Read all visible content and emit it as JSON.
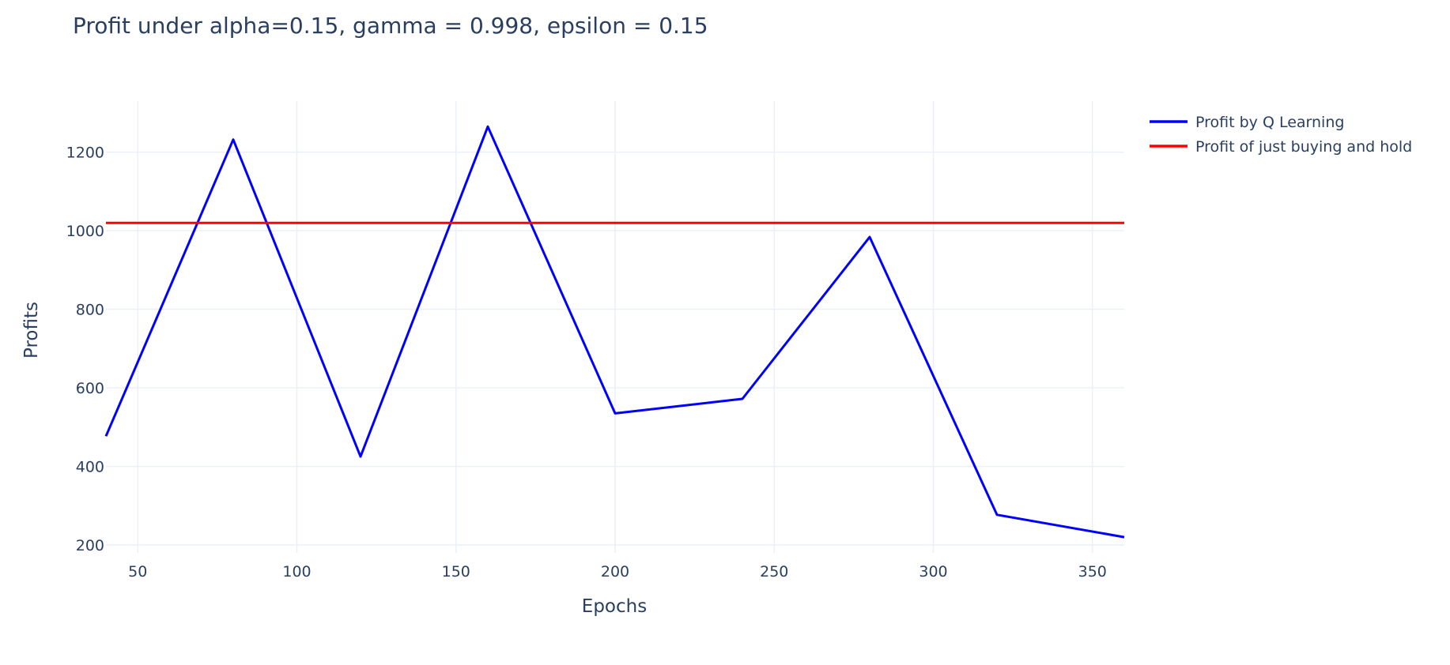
{
  "chart_data": {
    "type": "line",
    "title": "Profit under alpha=0.15, gamma = 0.998, epsilon = 0.15",
    "xlabel": "Epochs",
    "ylabel": "Profits",
    "xlim": [
      40,
      360
    ],
    "ylim": [
      180,
      1330
    ],
    "x_ticks": [
      50,
      100,
      150,
      200,
      250,
      300,
      350
    ],
    "y_ticks": [
      200,
      400,
      600,
      800,
      1000,
      1200
    ],
    "grid": true,
    "legend_position": "top-right outside",
    "series": [
      {
        "name": "Profit by Q Learning",
        "color": "#0000ff",
        "x": [
          40,
          80,
          120,
          160,
          200,
          240,
          280,
          320,
          360
        ],
        "y": [
          477,
          1232,
          425,
          1265,
          535,
          572,
          984,
          277,
          220
        ]
      },
      {
        "name": "Profit of just buying and hold",
        "color": "#ff0000",
        "x": [
          40,
          360
        ],
        "y": [
          1020,
          1020
        ]
      }
    ]
  }
}
